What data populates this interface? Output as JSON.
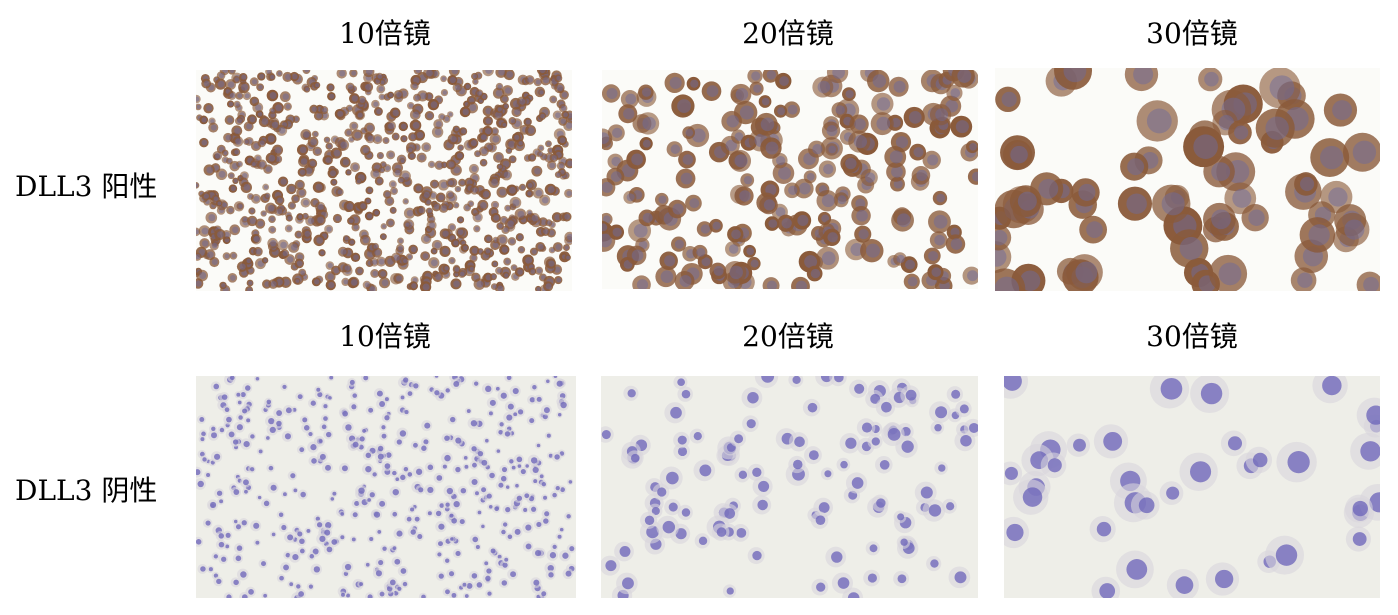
{
  "columns": [
    "10倍镜",
    "20倍镜",
    "30倍镜"
  ],
  "rows": [
    {
      "label": "DLL3 阳性",
      "stain": "positive",
      "colors": {
        "background": "#fbfbf8",
        "cell": "#8a5a3a",
        "nucleus": "#6e6a9a"
      }
    },
    {
      "label": "DLL3 阴性",
      "stain": "negative",
      "colors": {
        "background": "#eeeee8",
        "cell": "#d8d6dc",
        "nucleus": "#6a62b8"
      }
    }
  ],
  "magnifications": [
    10,
    20,
    30
  ]
}
